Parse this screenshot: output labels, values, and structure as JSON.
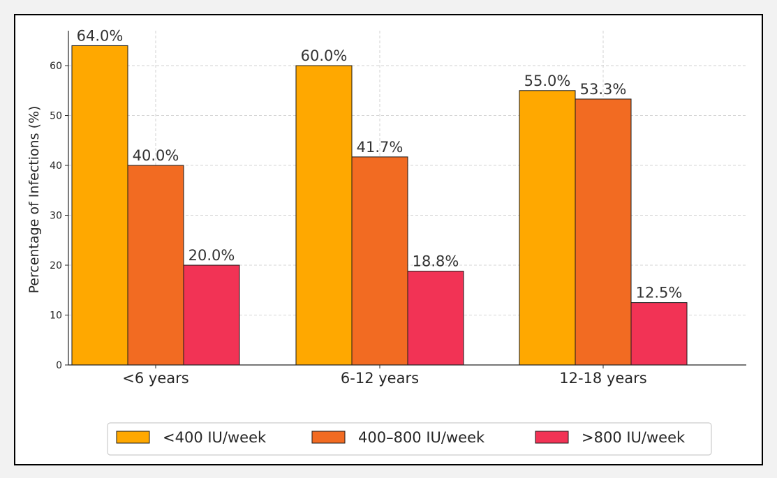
{
  "chart_data": {
    "type": "bar",
    "title": "",
    "xlabel": "",
    "ylabel": "Percentage of Infections (%)",
    "categories": [
      "<6 years",
      "6-12 years",
      "12-18 years"
    ],
    "series": [
      {
        "name": "<400 IU/week",
        "color": "#FFA800",
        "values": [
          64.0,
          60.0,
          55.0
        ],
        "labels": [
          "64.0%",
          "60.0%",
          "55.0%"
        ]
      },
      {
        "name": "400–800 IU/week",
        "color": "#F26B22",
        "values": [
          40.0,
          41.7,
          53.3
        ],
        "labels": [
          "40.0%",
          "41.7%",
          "53.3%"
        ]
      },
      {
        "name": ">800 IU/week",
        "color": "#F23355",
        "values": [
          20.0,
          18.8,
          12.5
        ],
        "labels": [
          "20.0%",
          "18.8%",
          "12.5%"
        ]
      }
    ],
    "ylim": [
      0,
      67
    ],
    "yticks": [
      0,
      10,
      20,
      30,
      40,
      50,
      60
    ],
    "grid": true,
    "legend_position": "bottom"
  }
}
